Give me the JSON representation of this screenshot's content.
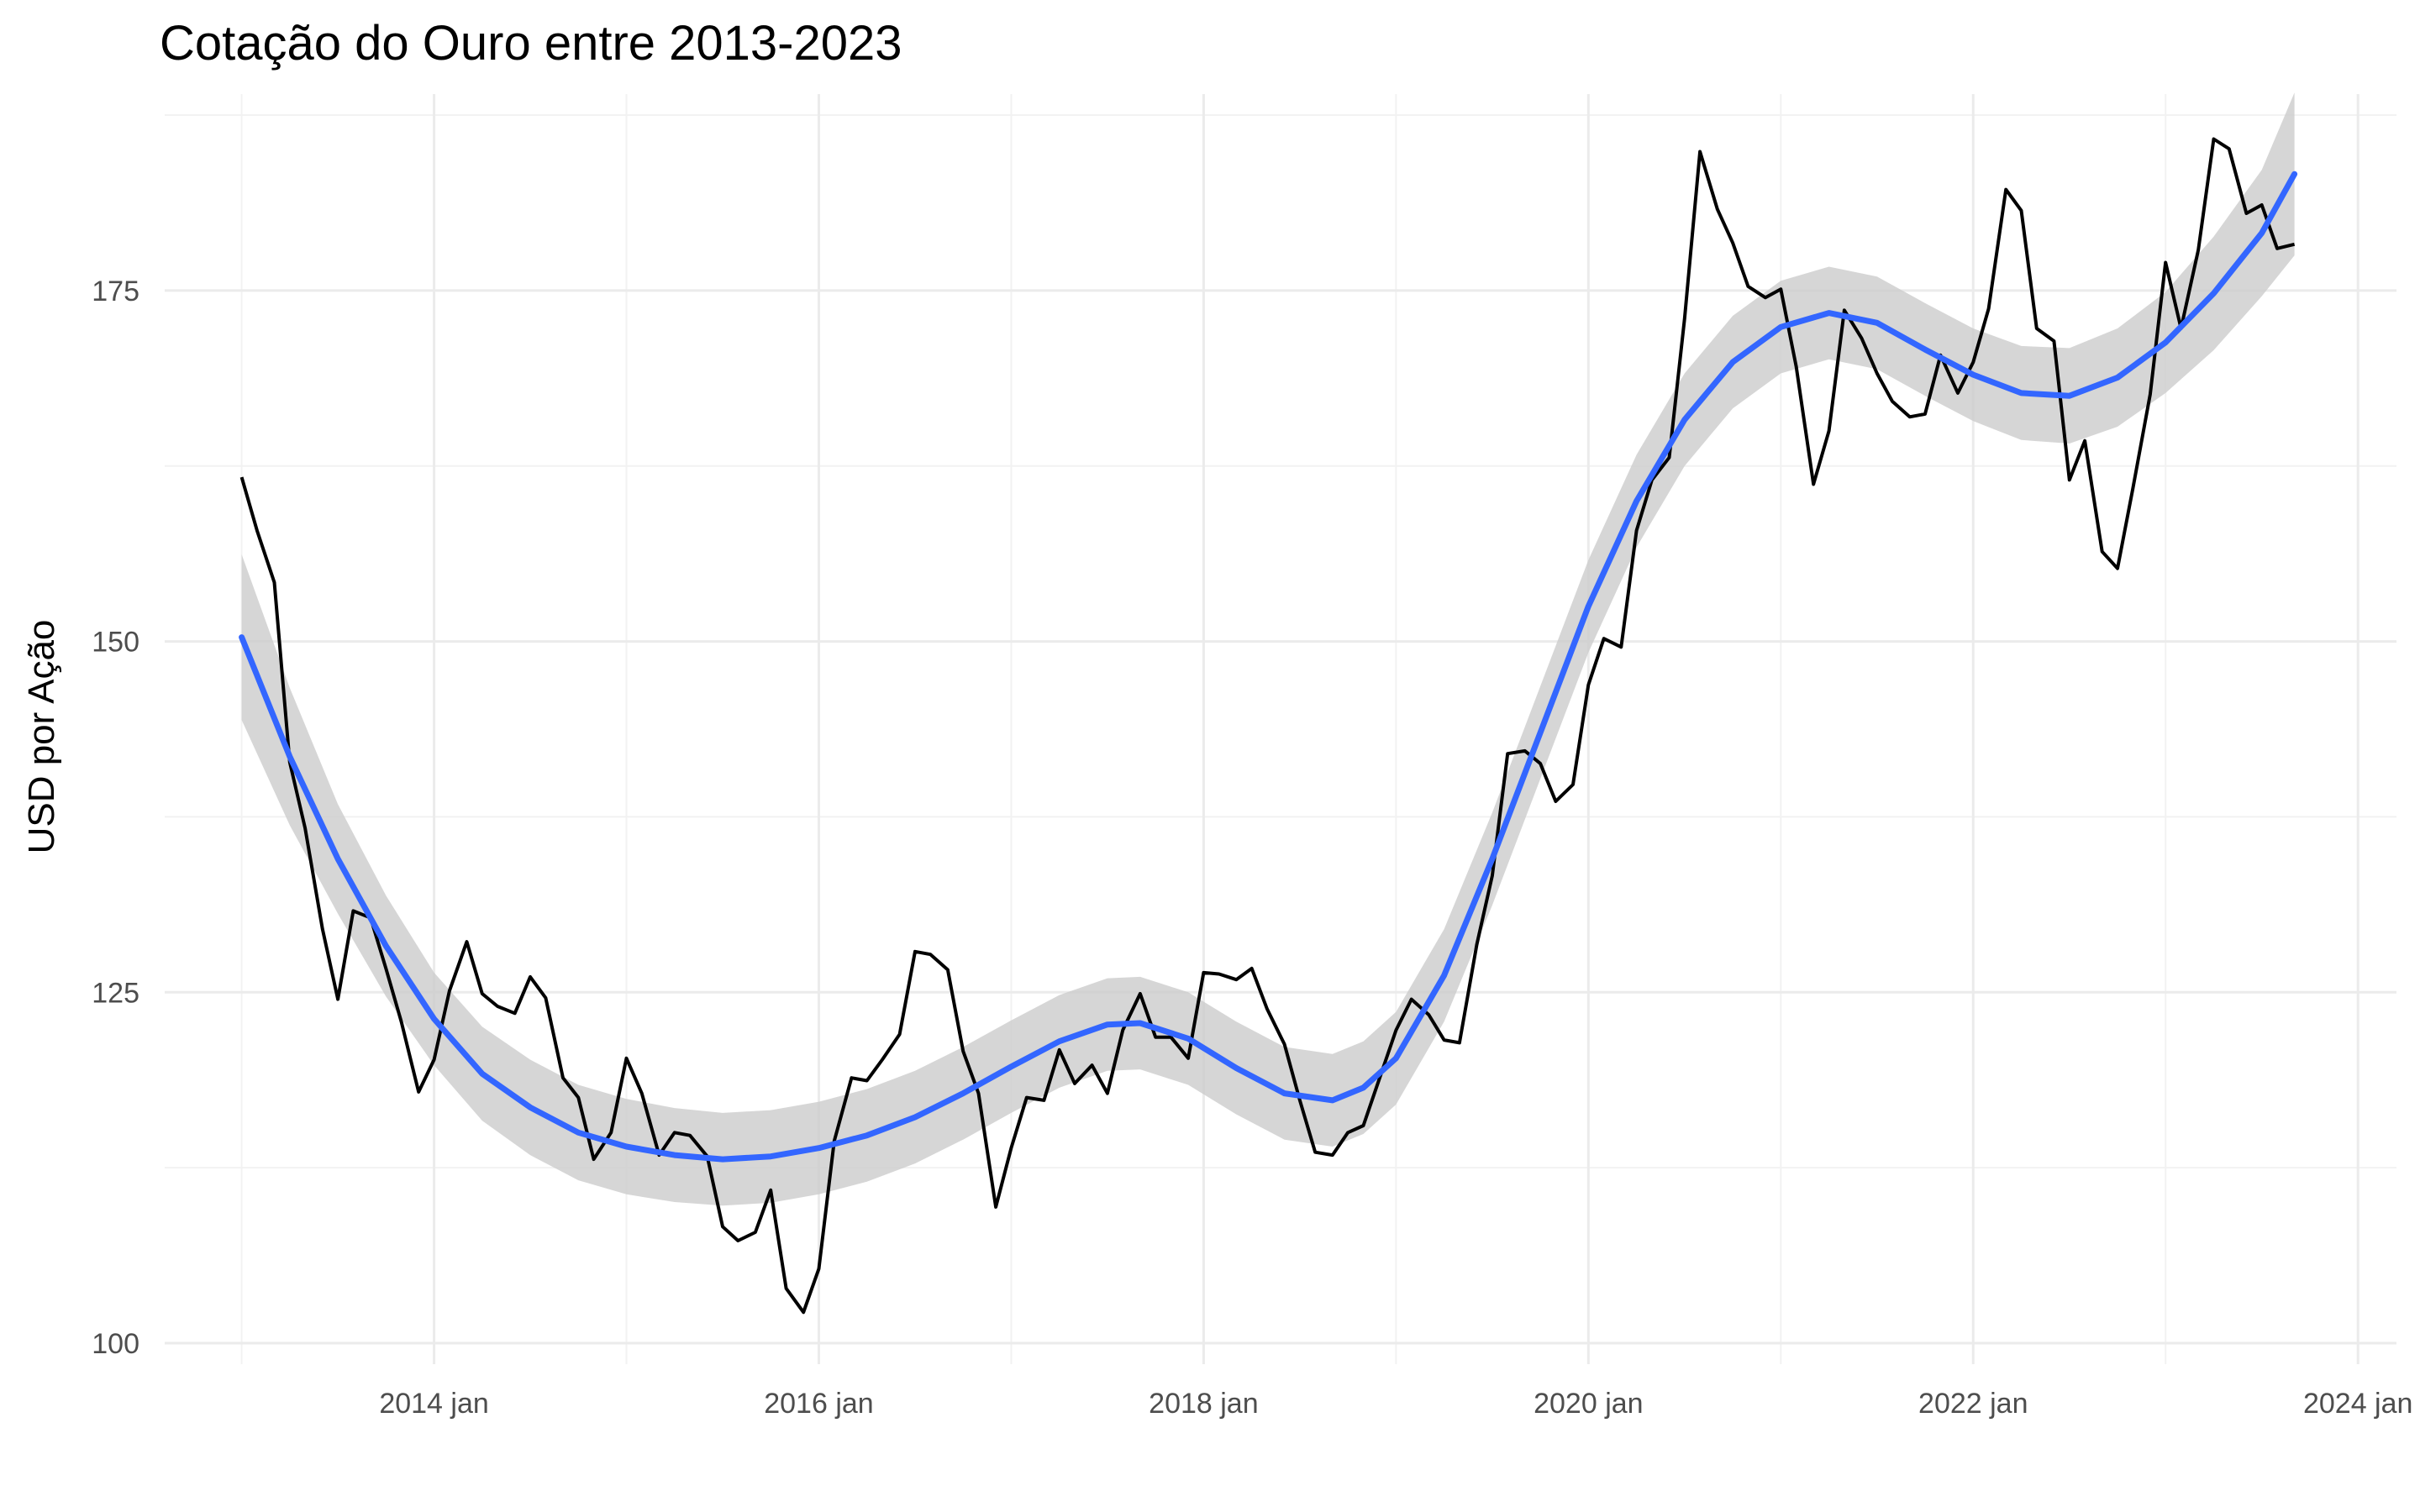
{
  "chart_data": {
    "type": "line",
    "title": "Cotação do Ouro entre 2013-2023",
    "xlabel": "",
    "ylabel": "USD por Ação",
    "xlim": [
      2012.6,
      2024.2
    ],
    "ylim": [
      98.5,
      189
    ],
    "x_ticks": [
      {
        "value": 2014,
        "label": "2014 jan"
      },
      {
        "value": 2016,
        "label": "2016 jan"
      },
      {
        "value": 2018,
        "label": "2018 jan"
      },
      {
        "value": 2020,
        "label": "2020 jan"
      },
      {
        "value": 2022,
        "label": "2022 jan"
      },
      {
        "value": 2024,
        "label": "2024 jan"
      }
    ],
    "y_ticks": [
      100,
      125,
      150,
      175
    ],
    "grid": true,
    "colors": {
      "price_line": "#000000",
      "smooth_line": "#3366FF",
      "confidence_band": "#CCCCCC",
      "grid_major": "#EBEBEB",
      "grid_minor": "#F2F2F2"
    },
    "series": [
      {
        "role": "price",
        "points": [
          [
            2013.0,
            161.7
          ],
          [
            2013.08,
            157.9
          ],
          [
            2013.17,
            154.2
          ],
          [
            2013.25,
            141.4
          ],
          [
            2013.33,
            136.7
          ],
          [
            2013.42,
            129.5
          ],
          [
            2013.5,
            124.5
          ],
          [
            2013.58,
            130.8
          ],
          [
            2013.67,
            130.3
          ],
          [
            2013.75,
            126.7
          ],
          [
            2013.83,
            122.9
          ],
          [
            2013.92,
            117.9
          ],
          [
            2014.0,
            120.2
          ],
          [
            2014.08,
            125.1
          ],
          [
            2014.17,
            128.6
          ],
          [
            2014.25,
            124.9
          ],
          [
            2014.33,
            124.0
          ],
          [
            2014.42,
            123.5
          ],
          [
            2014.5,
            126.1
          ],
          [
            2014.58,
            124.6
          ],
          [
            2014.67,
            118.9
          ],
          [
            2014.75,
            117.5
          ],
          [
            2014.83,
            113.1
          ],
          [
            2014.92,
            115.0
          ],
          [
            2015.0,
            120.3
          ],
          [
            2015.08,
            117.8
          ],
          [
            2015.17,
            113.4
          ],
          [
            2015.25,
            115.0
          ],
          [
            2015.33,
            114.8
          ],
          [
            2015.42,
            113.3
          ],
          [
            2015.5,
            108.3
          ],
          [
            2015.58,
            107.3
          ],
          [
            2015.67,
            107.9
          ],
          [
            2015.75,
            110.9
          ],
          [
            2015.83,
            103.9
          ],
          [
            2015.92,
            102.2
          ],
          [
            2016.0,
            105.3
          ],
          [
            2016.08,
            114.4
          ],
          [
            2016.17,
            118.9
          ],
          [
            2016.25,
            118.7
          ],
          [
            2016.33,
            120.2
          ],
          [
            2016.42,
            122.0
          ],
          [
            2016.5,
            127.9
          ],
          [
            2016.58,
            127.7
          ],
          [
            2016.67,
            126.6
          ],
          [
            2016.75,
            120.8
          ],
          [
            2016.83,
            117.8
          ],
          [
            2016.92,
            109.7
          ],
          [
            2017.0,
            113.9
          ],
          [
            2017.08,
            117.5
          ],
          [
            2017.17,
            117.3
          ],
          [
            2017.25,
            120.9
          ],
          [
            2017.33,
            118.5
          ],
          [
            2017.42,
            119.8
          ],
          [
            2017.5,
            117.8
          ],
          [
            2017.58,
            122.3
          ],
          [
            2017.67,
            124.9
          ],
          [
            2017.75,
            121.8
          ],
          [
            2017.83,
            121.8
          ],
          [
            2017.92,
            120.3
          ],
          [
            2018.0,
            126.4
          ],
          [
            2018.08,
            126.3
          ],
          [
            2018.17,
            125.9
          ],
          [
            2018.25,
            126.7
          ],
          [
            2018.33,
            123.8
          ],
          [
            2018.42,
            121.3
          ],
          [
            2018.5,
            117.3
          ],
          [
            2018.58,
            113.6
          ],
          [
            2018.67,
            113.4
          ],
          [
            2018.75,
            115.0
          ],
          [
            2018.83,
            115.5
          ],
          [
            2018.92,
            119.1
          ],
          [
            2019.0,
            122.3
          ],
          [
            2019.08,
            124.5
          ],
          [
            2019.17,
            123.4
          ],
          [
            2019.25,
            121.6
          ],
          [
            2019.33,
            121.4
          ],
          [
            2019.42,
            128.4
          ],
          [
            2019.5,
            133.3
          ],
          [
            2019.58,
            142.0
          ],
          [
            2019.67,
            142.2
          ],
          [
            2019.75,
            141.3
          ],
          [
            2019.83,
            138.6
          ],
          [
            2019.92,
            139.8
          ],
          [
            2020.0,
            146.9
          ],
          [
            2020.08,
            150.2
          ],
          [
            2020.17,
            149.6
          ],
          [
            2020.25,
            157.9
          ],
          [
            2020.33,
            161.5
          ],
          [
            2020.42,
            163.1
          ],
          [
            2020.5,
            173.0
          ],
          [
            2020.58,
            184.9
          ],
          [
            2020.67,
            180.8
          ],
          [
            2020.75,
            178.4
          ],
          [
            2020.83,
            175.3
          ],
          [
            2020.92,
            174.5
          ],
          [
            2021.0,
            175.1
          ],
          [
            2021.08,
            169.6
          ],
          [
            2021.17,
            161.2
          ],
          [
            2021.25,
            165.0
          ],
          [
            2021.33,
            173.6
          ],
          [
            2021.42,
            171.6
          ],
          [
            2021.5,
            169.1
          ],
          [
            2021.58,
            167.1
          ],
          [
            2021.67,
            166.0
          ],
          [
            2021.75,
            166.2
          ],
          [
            2021.83,
            170.4
          ],
          [
            2021.92,
            167.7
          ],
          [
            2022.0,
            169.9
          ],
          [
            2022.08,
            173.7
          ],
          [
            2022.17,
            182.2
          ],
          [
            2022.25,
            180.7
          ],
          [
            2022.33,
            172.3
          ],
          [
            2022.42,
            171.4
          ],
          [
            2022.5,
            161.5
          ],
          [
            2022.58,
            164.3
          ],
          [
            2022.67,
            156.4
          ],
          [
            2022.75,
            155.2
          ],
          [
            2022.83,
            160.9
          ],
          [
            2022.92,
            167.6
          ],
          [
            2023.0,
            177.0
          ],
          [
            2023.08,
            172.3
          ],
          [
            2023.17,
            177.9
          ],
          [
            2023.25,
            185.8
          ],
          [
            2023.33,
            185.1
          ],
          [
            2023.42,
            180.5
          ],
          [
            2023.5,
            181.1
          ],
          [
            2023.58,
            178.0
          ],
          [
            2023.67,
            178.3
          ]
        ]
      },
      {
        "role": "smooth",
        "points": [
          [
            2013.0,
            150.3
          ],
          [
            2013.25,
            141.8
          ],
          [
            2013.5,
            134.5
          ],
          [
            2013.75,
            128.3
          ],
          [
            2014.0,
            123.1
          ],
          [
            2014.25,
            119.2
          ],
          [
            2014.5,
            116.8
          ],
          [
            2014.75,
            115.0
          ],
          [
            2015.0,
            114.0
          ],
          [
            2015.25,
            113.4
          ],
          [
            2015.5,
            113.1
          ],
          [
            2015.75,
            113.3
          ],
          [
            2016.0,
            113.9
          ],
          [
            2016.25,
            114.8
          ],
          [
            2016.5,
            116.1
          ],
          [
            2016.75,
            117.8
          ],
          [
            2017.0,
            119.7
          ],
          [
            2017.25,
            121.5
          ],
          [
            2017.5,
            122.7
          ],
          [
            2017.67,
            122.8
          ],
          [
            2017.92,
            121.7
          ],
          [
            2018.17,
            119.6
          ],
          [
            2018.42,
            117.8
          ],
          [
            2018.67,
            117.3
          ],
          [
            2018.83,
            118.2
          ],
          [
            2019.0,
            120.3
          ],
          [
            2019.25,
            126.2
          ],
          [
            2019.5,
            134.5
          ],
          [
            2019.75,
            143.5
          ],
          [
            2020.0,
            152.5
          ],
          [
            2020.25,
            160.0
          ],
          [
            2020.5,
            165.8
          ],
          [
            2020.75,
            169.9
          ],
          [
            2021.0,
            172.4
          ],
          [
            2021.25,
            173.4
          ],
          [
            2021.5,
            172.7
          ],
          [
            2021.75,
            170.8
          ],
          [
            2022.0,
            169.0
          ],
          [
            2022.25,
            167.7
          ],
          [
            2022.5,
            167.5
          ],
          [
            2022.75,
            168.8
          ],
          [
            2023.0,
            171.3
          ],
          [
            2023.25,
            174.8
          ],
          [
            2023.5,
            179.1
          ],
          [
            2023.67,
            183.3
          ]
        ],
        "band_halfwidth": [
          [
            2013.0,
            5.9
          ],
          [
            2013.5,
            3.9
          ],
          [
            2014.0,
            3.3
          ],
          [
            2014.5,
            3.4
          ],
          [
            2015.0,
            3.4
          ],
          [
            2015.5,
            3.3
          ],
          [
            2016.0,
            3.3
          ],
          [
            2016.5,
            3.3
          ],
          [
            2017.0,
            3.3
          ],
          [
            2017.5,
            3.3
          ],
          [
            2018.0,
            3.3
          ],
          [
            2018.5,
            3.3
          ],
          [
            2019.0,
            3.3
          ],
          [
            2019.5,
            3.3
          ],
          [
            2020.0,
            3.3
          ],
          [
            2020.5,
            3.3
          ],
          [
            2021.0,
            3.3
          ],
          [
            2021.5,
            3.3
          ],
          [
            2022.0,
            3.3
          ],
          [
            2022.5,
            3.4
          ],
          [
            2023.0,
            3.6
          ],
          [
            2023.5,
            4.5
          ],
          [
            2023.67,
            5.8
          ]
        ]
      }
    ]
  }
}
